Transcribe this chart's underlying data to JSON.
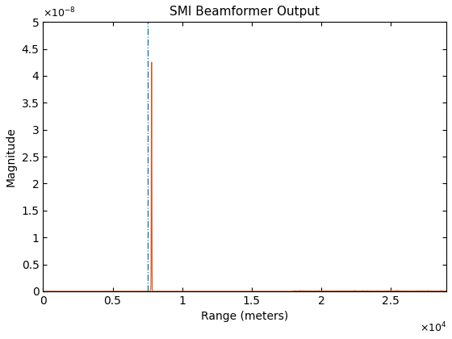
{
  "title": "SMI Beamformer Output",
  "xlabel": "Range (meters)",
  "ylabel": "Magnitude",
  "xlim": [
    0,
    29000
  ],
  "ylim": [
    0,
    5e-08
  ],
  "target_range": 7800,
  "marker_range": 7500,
  "peak_value": 4.3e-08,
  "noise_floor": 1.5e-11,
  "signal_color": "#d95319",
  "marker_color": "#0072bd",
  "marker_linestyle": "-.",
  "signal_linestyle": "-",
  "signal_linewidth": 0.8,
  "marker_linewidth": 0.9,
  "ytick_labels": [
    "0",
    "0.5",
    "1",
    "1.5",
    "2",
    "2.5",
    "3",
    "3.5",
    "4",
    "4.5",
    "5"
  ],
  "ytick_values": [
    0,
    5e-09,
    1e-08,
    1.5e-08,
    2e-08,
    2.5e-08,
    3e-08,
    3.5e-08,
    4e-08,
    4.5e-08,
    5e-08
  ],
  "xtick_values": [
    0,
    5000,
    10000,
    15000,
    20000,
    25000
  ],
  "xtick_labels": [
    "0",
    "0.5",
    "1",
    "1.5",
    "2",
    "2.5"
  ]
}
